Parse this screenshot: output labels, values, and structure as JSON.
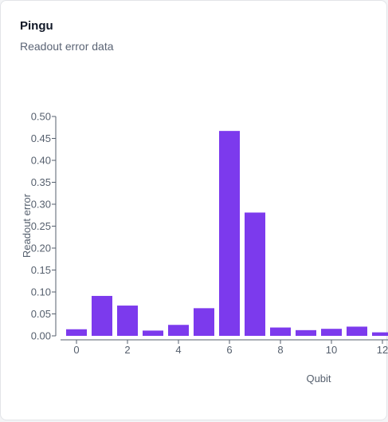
{
  "card": {
    "title": "Pingu",
    "subtitle": "Readout error data"
  },
  "chart_data": {
    "type": "bar",
    "title": "",
    "xlabel": "Qubit",
    "ylabel": "Readout error",
    "ylim": [
      0,
      0.5
    ],
    "yticks": [
      "0.00",
      "0.05",
      "0.10",
      "0.15",
      "0.20",
      "0.25",
      "0.30",
      "0.35",
      "0.40",
      "0.45",
      "0.50"
    ],
    "xticks": [
      "0",
      "2",
      "4",
      "6",
      "8",
      "10",
      "12"
    ],
    "xtick_values": [
      0,
      2,
      4,
      6,
      8,
      10,
      12
    ],
    "categories": [
      0,
      1,
      2,
      3,
      4,
      5,
      6,
      7,
      8,
      9,
      10,
      11,
      12
    ],
    "values": [
      0.015,
      0.091,
      0.069,
      0.012,
      0.025,
      0.063,
      0.467,
      0.281,
      0.019,
      0.013,
      0.016,
      0.021,
      0.008
    ],
    "bar_color": "#7c3aed",
    "grid": false,
    "legend": "none"
  }
}
